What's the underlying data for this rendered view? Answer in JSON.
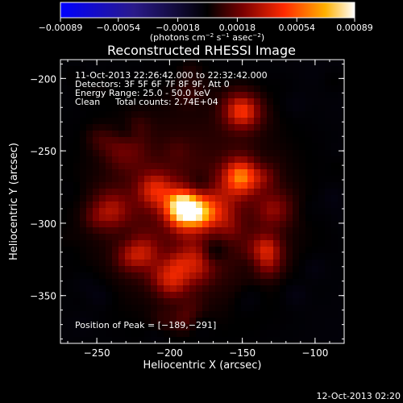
{
  "chart_data": {
    "type": "heatmap",
    "title": "Reconstructed RHESSI Image",
    "xlabel": "Heliocentric X (arcsec)",
    "ylabel": "Heliocentric Y (arcsec)",
    "xlim": [
      -275,
      -80
    ],
    "ylim": [
      -383,
      -187
    ],
    "xticks": [
      -250,
      -200,
      -150,
      -100
    ],
    "xtick_labels": [
      "−250",
      "−200",
      "−150",
      "−100"
    ],
    "yticks": [
      -200,
      -250,
      -300,
      -350
    ],
    "ytick_labels": [
      "−200",
      "−250",
      "−300",
      "−350"
    ],
    "colorbar": {
      "range": [
        -0.00089,
        0.00089
      ],
      "ticks": [
        -0.00089,
        -0.00054,
        -0.00018,
        0.00018,
        0.00054,
        0.00089
      ],
      "tick_labels": [
        "−0.00089",
        "−0.00054",
        "−0.00018",
        "0.00018",
        "0.00054",
        "0.00089"
      ],
      "unit_label_parts": [
        "(photons cm",
        "−2",
        " s",
        "−1",
        " asec",
        "−2",
        ")"
      ]
    },
    "annotations": {
      "time_range": "11-Oct-2013 22:26:42.000 to 22:32:42.000",
      "detectors": "Detectors: 3F 5F 6F 7F 8F 9F, Att 0",
      "energy": "Energy Range: 25.0 - 50.0 keV",
      "method": "Clean",
      "counts": "Total counts: 2.74E+04",
      "peak": "Position of Peak = [−189,−291]"
    },
    "peak": [
      -189,
      -291
    ],
    "sources": [
      {
        "x": -189,
        "y": -291,
        "amp": 0.00089
      },
      {
        "x": -151,
        "y": -268,
        "amp": 0.00056
      },
      {
        "x": -150,
        "y": -222,
        "amp": 0.00052
      },
      {
        "x": -210,
        "y": -277,
        "amp": 0.00036
      },
      {
        "x": -168,
        "y": -290,
        "amp": 0.0004
      },
      {
        "x": -220,
        "y": -320,
        "amp": 0.00034
      },
      {
        "x": -180,
        "y": -325,
        "amp": 0.0003
      },
      {
        "x": -135,
        "y": -320,
        "amp": 0.0003
      },
      {
        "x": -240,
        "y": -290,
        "amp": 0.00028
      },
      {
        "x": -230,
        "y": -250,
        "amp": 0.00026
      },
      {
        "x": -197,
        "y": -338,
        "amp": 0.00033
      },
      {
        "x": -128,
        "y": -290,
        "amp": 0.00022
      }
    ]
  },
  "footer": {
    "timestamp": "12-Oct-2013 02:20"
  }
}
